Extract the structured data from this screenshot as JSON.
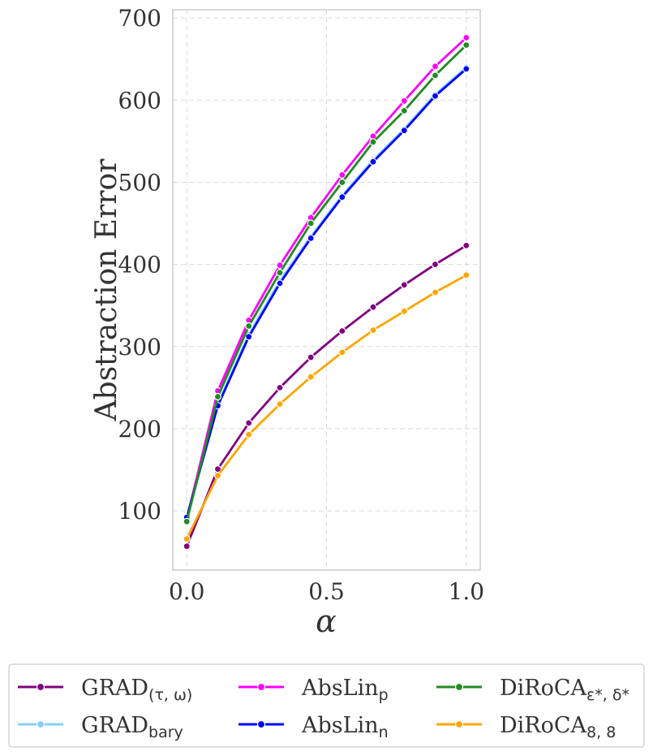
{
  "chart_data": {
    "type": "line",
    "xlabel": "α",
    "ylabel": "Abstraction Error",
    "xlim": [
      -0.05,
      1.05
    ],
    "ylim": [
      28,
      710
    ],
    "x_ticks": [
      0.0,
      0.5,
      1.0
    ],
    "x_tick_labels": [
      "0.0",
      "0.5",
      "1.0"
    ],
    "y_ticks": [
      100,
      200,
      300,
      400,
      500,
      600,
      700
    ],
    "y_tick_labels": [
      "100",
      "200",
      "300",
      "400",
      "500",
      "600",
      "700"
    ],
    "grid": true,
    "legend_position": "bottom",
    "x": [
      0.0,
      0.111,
      0.222,
      0.333,
      0.444,
      0.556,
      0.667,
      0.778,
      0.889,
      1.0
    ],
    "series": [
      {
        "name": "GRAD",
        "sub": "(τ, ω)",
        "sub_font": "sans",
        "color": "#800080",
        "values": [
          57,
          151,
          207,
          250,
          287,
          319,
          348,
          375,
          400,
          423
        ]
      },
      {
        "name": "GRAD",
        "sub": "bary",
        "sub_font": "sans",
        "color": "#87cefa",
        "values": [
          89,
          230,
          315,
          380,
          434,
          484,
          527,
          565,
          607,
          640
        ]
      },
      {
        "name": "AbsLin",
        "sub": "p",
        "sub_font": "sans",
        "color": "#ff00ff",
        "values": [
          90,
          246,
          332,
          399,
          457,
          509,
          556,
          599,
          641,
          676
        ]
      },
      {
        "name": "AbsLin",
        "sub": "n",
        "sub_font": "sans",
        "color": "#0000ff",
        "values": [
          92,
          228,
          312,
          377,
          432,
          482,
          525,
          563,
          605,
          638
        ]
      },
      {
        "name": "DiRoCA",
        "sub": "ε*, δ*",
        "sub_font": "sans",
        "color": "#228b22",
        "values": [
          87,
          239,
          325,
          390,
          450,
          500,
          549,
          587,
          630,
          667
        ]
      },
      {
        "name": "DiRoCA",
        "sub": "8, 8",
        "sub_font": "sans",
        "color": "#ffa500",
        "values": [
          66,
          143,
          193,
          230,
          263,
          293,
          320,
          343,
          366,
          387
        ]
      }
    ]
  }
}
